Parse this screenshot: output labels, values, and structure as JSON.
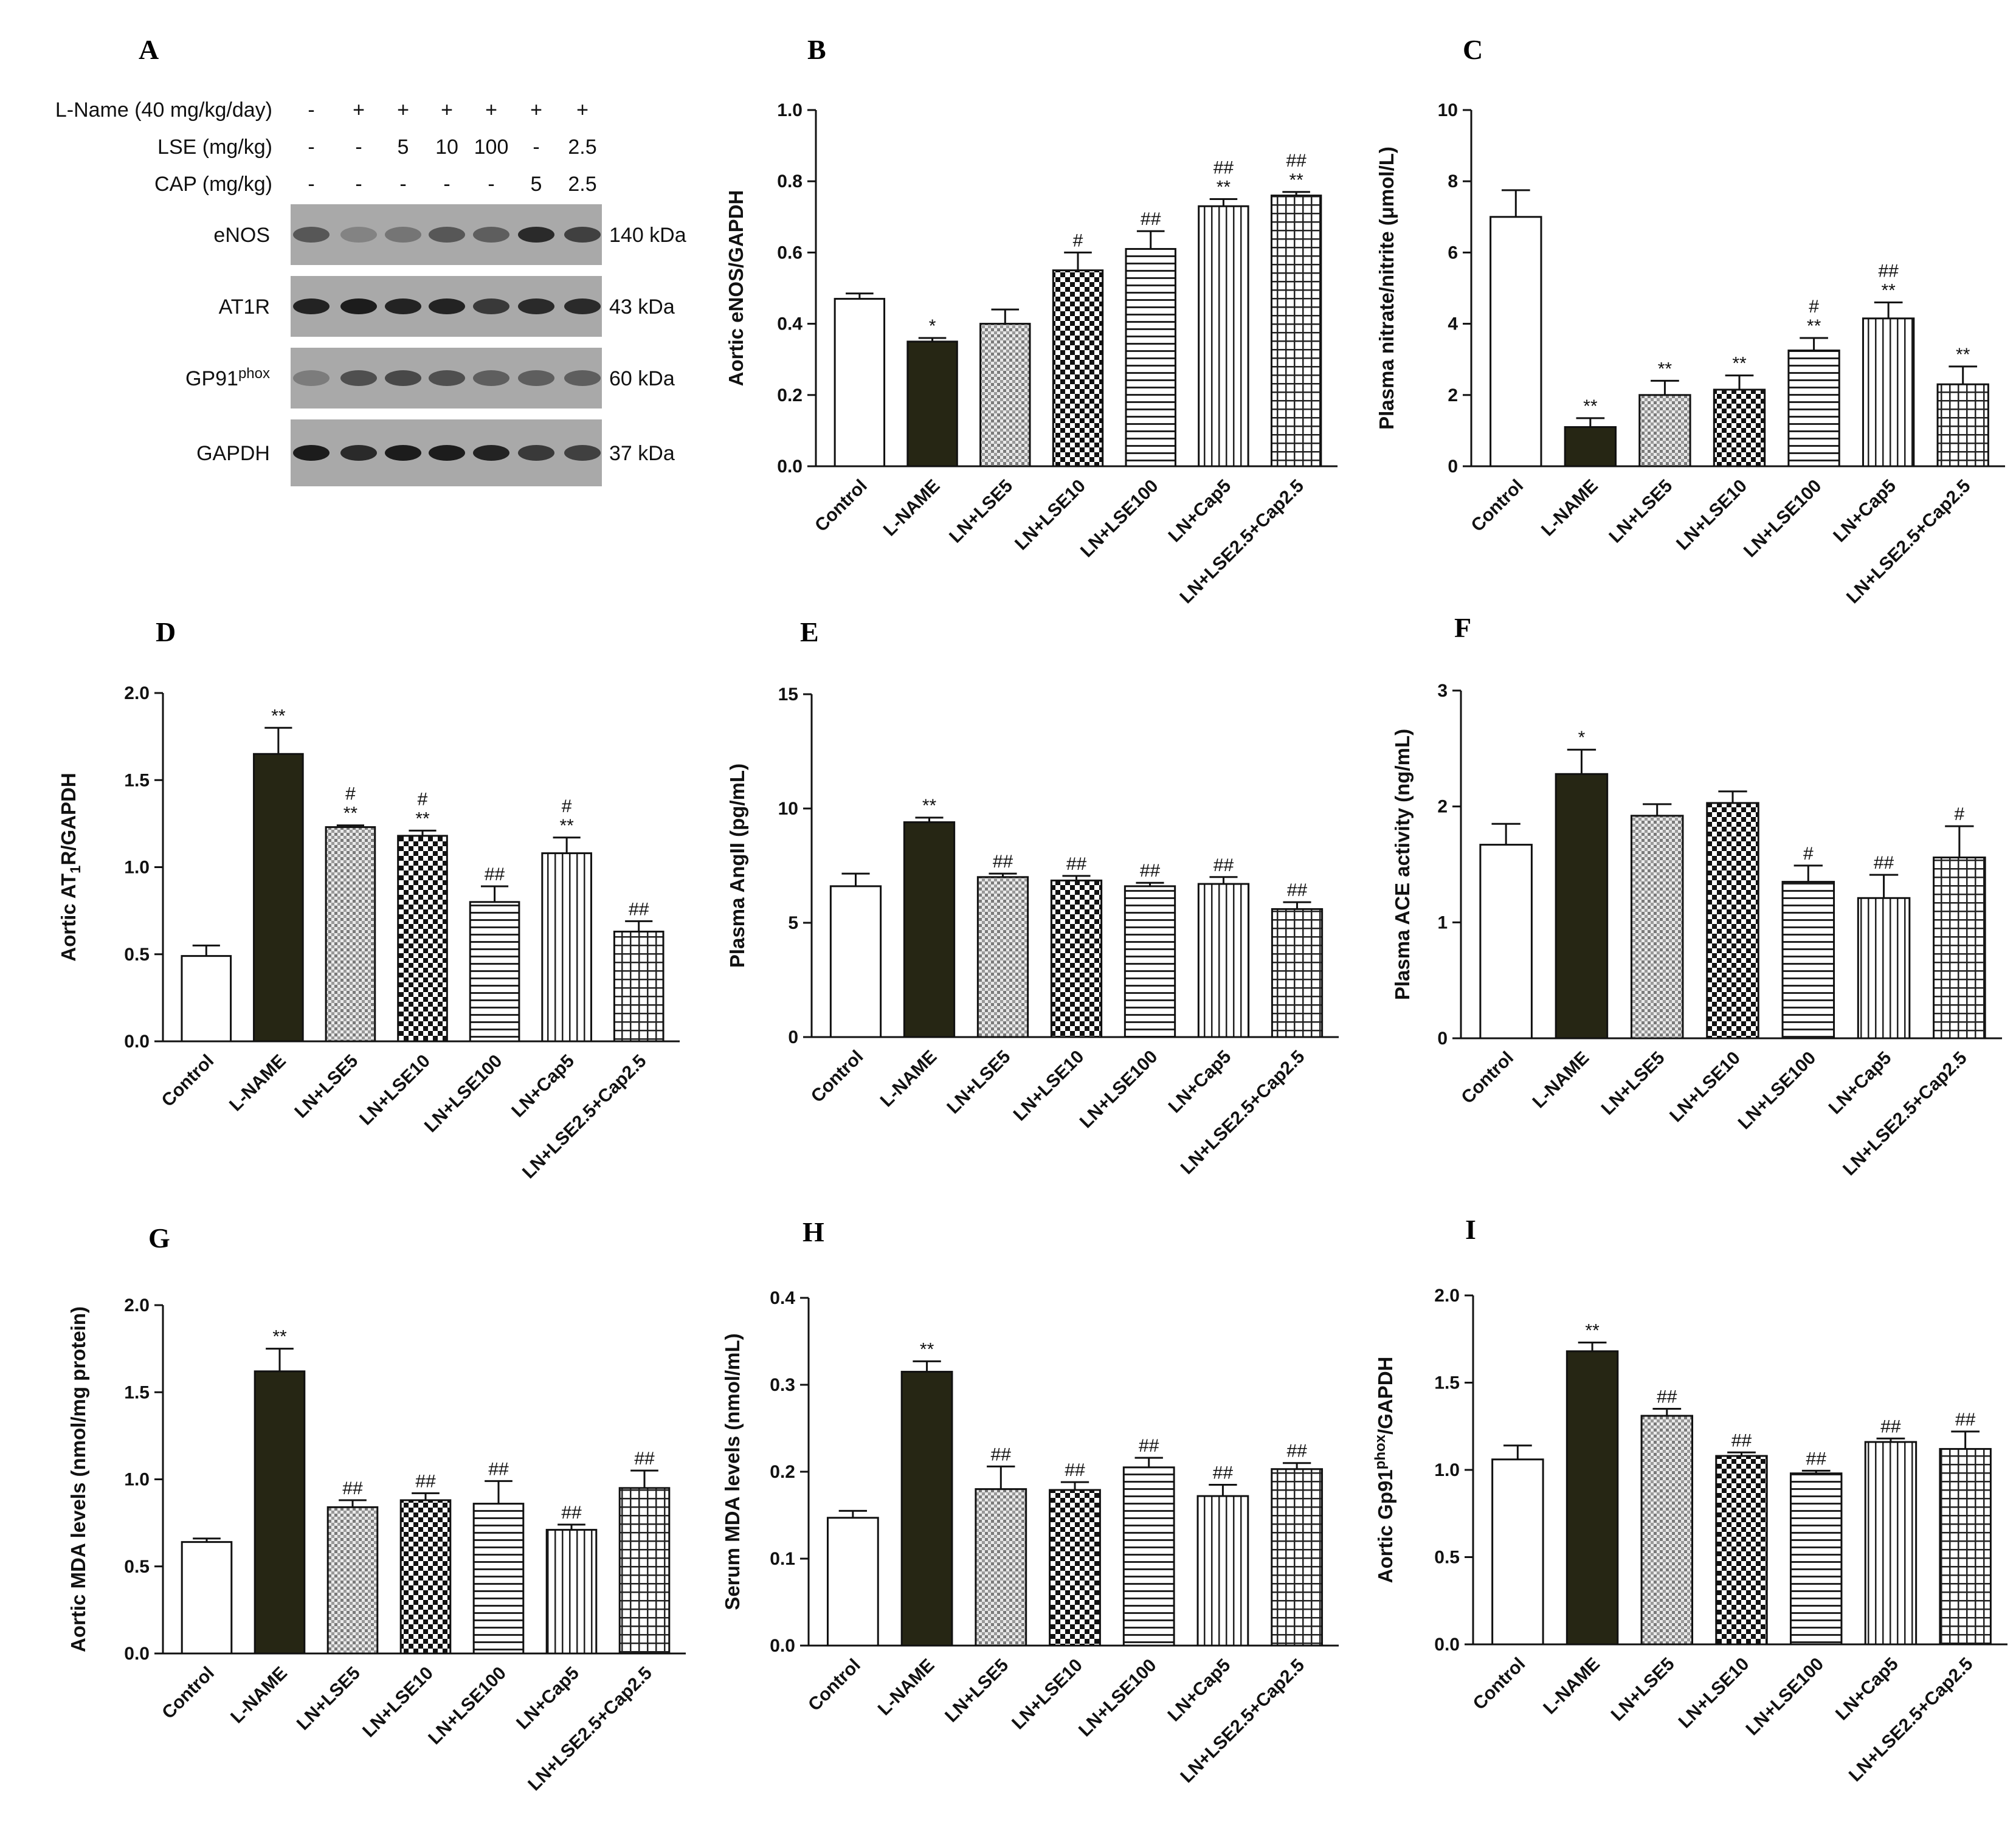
{
  "categories": [
    "Control",
    "L-NAME",
    "LN+LSE5",
    "LN+LSE10",
    "LN+LSE100",
    "LN+Cap5",
    "LN+LSE2.5+Cap2.5"
  ],
  "western_blot": {
    "letter": "A",
    "treatment_rows": [
      {
        "label": "L-Name (40 mg/kg/day)",
        "values": [
          "-",
          "+",
          "+",
          "+",
          "+",
          "+",
          "+"
        ]
      },
      {
        "label": "LSE (mg/kg)",
        "values": [
          "-",
          "-",
          "5",
          "10",
          "100",
          "-",
          "2.5"
        ]
      },
      {
        "label": "CAP (mg/kg)",
        "values": [
          "-",
          "-",
          "-",
          "-",
          "-",
          "5",
          "2.5"
        ]
      }
    ],
    "blots": [
      {
        "protein": "eNOS",
        "kda": "140 kDa"
      },
      {
        "protein": "AT1R",
        "kda": "43 kDa"
      },
      {
        "protein": "GP91phox",
        "protein_base": "GP91",
        "protein_sup": "phox",
        "kda": "60 kDa"
      },
      {
        "protein": "GAPDH",
        "kda": "37 kDa"
      }
    ]
  },
  "chart_data": [
    {
      "letter": "B",
      "type": "bar",
      "ylabel": "Aortic eNOS/GAPDH",
      "ylim": [
        0,
        1.0
      ],
      "ticks": [
        "0.0",
        "0.2",
        "0.4",
        "0.6",
        "0.8",
        "1.0"
      ],
      "values": [
        0.47,
        0.35,
        0.4,
        0.55,
        0.61,
        0.73,
        0.76
      ],
      "errors": [
        0.015,
        0.01,
        0.04,
        0.05,
        0.05,
        0.02,
        0.01
      ],
      "sig": [
        [],
        [
          "*"
        ],
        [],
        [
          "#"
        ],
        [
          "##"
        ],
        [
          "##",
          "**"
        ],
        [
          "##",
          "**"
        ]
      ]
    },
    {
      "letter": "C",
      "type": "bar",
      "ylabel": "Plasma nitrate/nitrite (μmol/L)",
      "ylim": [
        0,
        10
      ],
      "ticks": [
        "0",
        "2",
        "4",
        "6",
        "8",
        "10"
      ],
      "values": [
        7.0,
        1.1,
        2.0,
        2.15,
        3.25,
        4.15,
        2.3
      ],
      "errors": [
        0.75,
        0.25,
        0.4,
        0.4,
        0.35,
        0.45,
        0.5
      ],
      "sig": [
        [],
        [
          "**"
        ],
        [
          "**"
        ],
        [
          "**"
        ],
        [
          "#",
          "**"
        ],
        [
          "##",
          "**"
        ],
        [
          "**"
        ]
      ]
    },
    {
      "letter": "D",
      "type": "bar",
      "ylabel_base": "Aortic AT",
      "ylabel_sub": "1",
      "ylabel_end": "R/GAPDH",
      "ylabel": "Aortic AT1R/GAPDH",
      "ylim": [
        0,
        2.0
      ],
      "ticks": [
        "0.0",
        "0.5",
        "1.0",
        "1.5",
        "2.0"
      ],
      "values": [
        0.49,
        1.65,
        1.23,
        1.18,
        0.8,
        1.08,
        0.63
      ],
      "errors": [
        0.06,
        0.15,
        0.01,
        0.03,
        0.09,
        0.09,
        0.06
      ],
      "sig": [
        [],
        [
          "**"
        ],
        [
          "#",
          "**"
        ],
        [
          "#",
          "**"
        ],
        [
          "##"
        ],
        [
          "#",
          "**"
        ],
        [
          "##"
        ]
      ]
    },
    {
      "letter": "E",
      "type": "bar",
      "ylabel": "Plasma AngII (pg/mL)",
      "ylim": [
        0,
        15
      ],
      "ticks": [
        "0",
        "5",
        "10",
        "15"
      ],
      "values": [
        6.6,
        9.4,
        7.0,
        6.85,
        6.6,
        6.7,
        5.6
      ],
      "errors": [
        0.55,
        0.2,
        0.15,
        0.2,
        0.15,
        0.3,
        0.3
      ],
      "sig": [
        [],
        [
          "**"
        ],
        [
          "##"
        ],
        [
          "##"
        ],
        [
          "##"
        ],
        [
          "##"
        ],
        [
          "##"
        ]
      ]
    },
    {
      "letter": "F",
      "type": "bar",
      "ylabel": "Plasma ACE activity (ng/mL)",
      "ylim": [
        0,
        3
      ],
      "ticks": [
        "0",
        "1",
        "2",
        "3"
      ],
      "values": [
        1.67,
        2.28,
        1.92,
        2.03,
        1.35,
        1.21,
        1.56
      ],
      "errors": [
        0.18,
        0.21,
        0.1,
        0.1,
        0.14,
        0.2,
        0.27
      ],
      "sig": [
        [],
        [
          "*"
        ],
        [],
        [],
        [
          "#"
        ],
        [
          "##"
        ],
        [
          "#"
        ]
      ]
    },
    {
      "letter": "G",
      "type": "bar",
      "ylabel": "Aortic MDA levels (nmol/mg protein)",
      "ylim": [
        0,
        2.0
      ],
      "ticks": [
        "0.0",
        "0.5",
        "1.0",
        "1.5",
        "2.0"
      ],
      "values": [
        0.64,
        1.62,
        0.84,
        0.88,
        0.86,
        0.71,
        0.95
      ],
      "errors": [
        0.02,
        0.13,
        0.04,
        0.04,
        0.13,
        0.03,
        0.1
      ],
      "sig": [
        [],
        [
          "**"
        ],
        [
          "##"
        ],
        [
          "##"
        ],
        [
          "##"
        ],
        [
          "##"
        ],
        [
          "##"
        ]
      ]
    },
    {
      "letter": "H",
      "type": "bar",
      "ylabel": "Serum MDA levels (nmol/mL)",
      "ylim": [
        0,
        0.4
      ],
      "ticks": [
        "0.0",
        "0.1",
        "0.2",
        "0.3",
        "0.4"
      ],
      "values": [
        0.147,
        0.315,
        0.18,
        0.179,
        0.205,
        0.172,
        0.203
      ],
      "errors": [
        0.008,
        0.012,
        0.026,
        0.009,
        0.011,
        0.013,
        0.007
      ],
      "sig": [
        [],
        [
          "**"
        ],
        [
          "##"
        ],
        [
          "##"
        ],
        [
          "##"
        ],
        [
          "##"
        ],
        [
          "##"
        ]
      ]
    },
    {
      "letter": "I",
      "type": "bar",
      "ylabel_base": "Aortic Gp91",
      "ylabel_sup": "phox",
      "ylabel_end": "/GAPDH",
      "ylabel": "Aortic Gp91phox/GAPDH",
      "ylim": [
        0,
        2.0
      ],
      "ticks": [
        "0.0",
        "0.5",
        "1.0",
        "1.5",
        "2.0"
      ],
      "values": [
        1.06,
        1.68,
        1.31,
        1.08,
        0.98,
        1.16,
        1.12
      ],
      "errors": [
        0.08,
        0.05,
        0.04,
        0.02,
        0.015,
        0.02,
        0.1
      ],
      "sig": [
        [],
        [
          "**"
        ],
        [
          "##"
        ],
        [
          "##"
        ],
        [
          "##"
        ],
        [
          "##"
        ],
        [
          "##"
        ]
      ]
    }
  ]
}
